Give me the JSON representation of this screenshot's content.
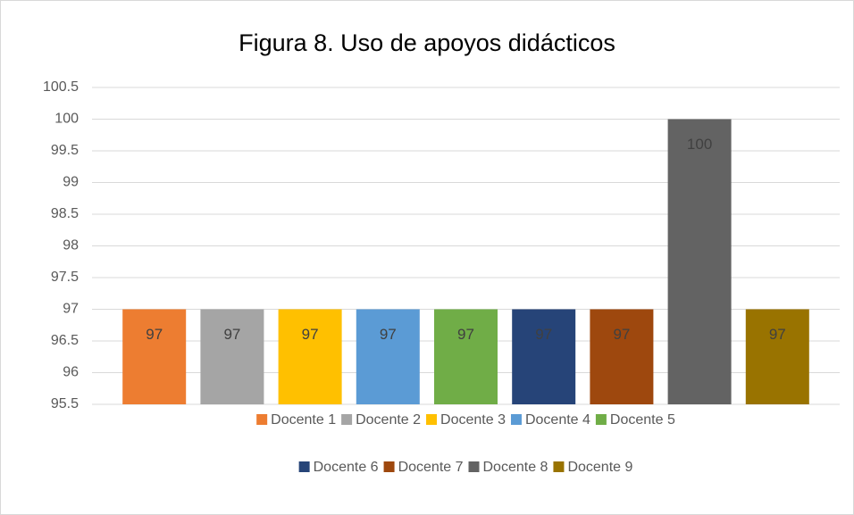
{
  "chart_data": {
    "type": "bar",
    "title": "Figura 8. Uso de apoyos didácticos",
    "categories": [
      null
    ],
    "series": [
      {
        "name": "Docente 1",
        "color": "#ed7d31",
        "values": [
          97
        ]
      },
      {
        "name": "Docente 2",
        "color": "#a5a5a5",
        "values": [
          97
        ]
      },
      {
        "name": "Docente 3",
        "color": "#ffc000",
        "values": [
          97
        ]
      },
      {
        "name": "Docente 4",
        "color": "#5b9bd5",
        "values": [
          97
        ]
      },
      {
        "name": "Docente 5",
        "color": "#70ad47",
        "values": [
          97
        ]
      },
      {
        "name": "Docente 6",
        "color": "#264478",
        "values": [
          97
        ]
      },
      {
        "name": "Docente 7",
        "color": "#9e480e",
        "values": [
          97
        ]
      },
      {
        "name": "Docente 8",
        "color": "#636363",
        "values": [
          100
        ]
      },
      {
        "name": "Docente 9",
        "color": "#997300",
        "values": [
          97
        ]
      }
    ],
    "ylim": [
      95.5,
      100.5
    ],
    "yticks": [
      95.5,
      96,
      96.5,
      97,
      97.5,
      98,
      98.5,
      99,
      99.5,
      100,
      100.5
    ],
    "grid": true,
    "legend": "bottom"
  }
}
